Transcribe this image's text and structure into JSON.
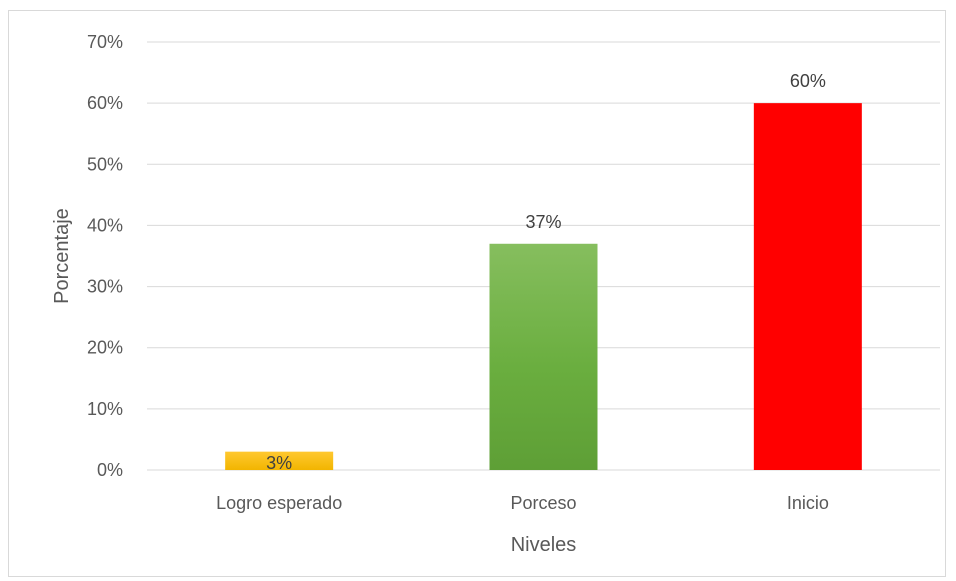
{
  "chart_data": {
    "type": "bar",
    "title": "",
    "xlabel": "Niveles",
    "ylabel": "Porcentaje",
    "categories": [
      "Logro esperado",
      "Porceso",
      "Inicio"
    ],
    "values": [
      3,
      37,
      60
    ],
    "data_labels": [
      "3%",
      "37%",
      "60%"
    ],
    "bar_colors": [
      "#FFC000",
      "#70AD47",
      "#FF0000"
    ],
    "ylim": [
      0,
      70
    ],
    "y_ticks": [
      0,
      10,
      20,
      30,
      40,
      50,
      60,
      70
    ],
    "y_tick_labels": [
      "0%",
      "10%",
      "20%",
      "30%",
      "40%",
      "50%",
      "60%",
      "70%"
    ],
    "grid": true,
    "legend": "none"
  }
}
